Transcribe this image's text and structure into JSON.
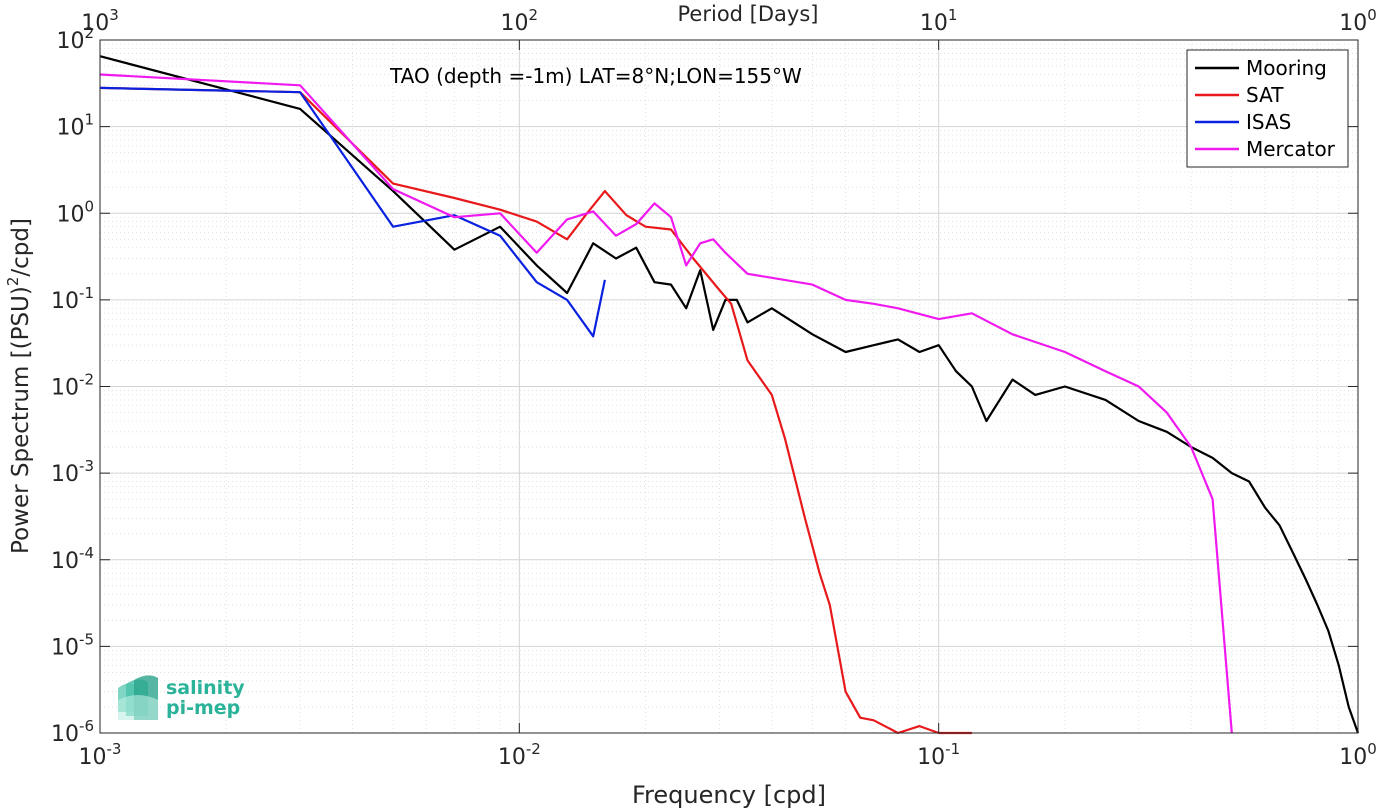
{
  "chart_data": {
    "type": "line",
    "title": "TAO (depth =-1m) LAT=8°N;LON=155°W",
    "xlabel": "Frequency [cpd]",
    "ylabel": "Power Spectrum [(PSU)²/cpd]",
    "ylabel_base": "Power Spectrum [(PSU)",
    "ylabel_exp": "2",
    "ylabel_end": "/cpd]",
    "top_xlabel": "Period [Days]",
    "x_scale": "log",
    "y_scale": "log",
    "xlim": [
      0.001,
      1
    ],
    "ylim": [
      1e-06,
      100
    ],
    "x_ticks": [
      {
        "value": 0.001,
        "base": "10",
        "exp": "-3"
      },
      {
        "value": 0.01,
        "base": "10",
        "exp": "-2"
      },
      {
        "value": 0.1,
        "base": "10",
        "exp": "-1"
      },
      {
        "value": 1,
        "base": "10",
        "exp": "0"
      }
    ],
    "y_ticks": [
      {
        "value": 1e-06,
        "base": "10",
        "exp": "-6"
      },
      {
        "value": 1e-05,
        "base": "10",
        "exp": "-5"
      },
      {
        "value": 0.0001,
        "base": "10",
        "exp": "-4"
      },
      {
        "value": 0.001,
        "base": "10",
        "exp": "-3"
      },
      {
        "value": 0.01,
        "base": "10",
        "exp": "-2"
      },
      {
        "value": 0.1,
        "base": "10",
        "exp": "-1"
      },
      {
        "value": 1,
        "base": "10",
        "exp": "0"
      },
      {
        "value": 10,
        "base": "10",
        "exp": "1"
      },
      {
        "value": 100,
        "base": "10",
        "exp": "2"
      }
    ],
    "top_ticks": [
      {
        "value": 0.001,
        "base": "10",
        "exp": "3"
      },
      {
        "value": 0.01,
        "base": "10",
        "exp": "2"
      },
      {
        "value": 0.1,
        "base": "10",
        "exp": "1"
      },
      {
        "value": 1,
        "base": "10",
        "exp": "0"
      }
    ],
    "grid": true,
    "legend_position": "top-right",
    "series": [
      {
        "name": "Mooring",
        "color": "#000000",
        "x": [
          0.001,
          0.003,
          0.005,
          0.007,
          0.009,
          0.011,
          0.013,
          0.015,
          0.017,
          0.019,
          0.021,
          0.023,
          0.025,
          0.027,
          0.029,
          0.031,
          0.033,
          0.035,
          0.04,
          0.05,
          0.06,
          0.07,
          0.08,
          0.09,
          0.1,
          0.11,
          0.12,
          0.13,
          0.15,
          0.17,
          0.2,
          0.25,
          0.3,
          0.35,
          0.4,
          0.45,
          0.5,
          0.55,
          0.6,
          0.65,
          0.7,
          0.75,
          0.8,
          0.85,
          0.9,
          0.95,
          1.0
        ],
        "y": [
          65,
          16,
          1.8,
          0.38,
          0.7,
          0.25,
          0.12,
          0.45,
          0.3,
          0.4,
          0.16,
          0.15,
          0.08,
          0.22,
          0.045,
          0.1,
          0.1,
          0.055,
          0.08,
          0.04,
          0.025,
          0.03,
          0.035,
          0.025,
          0.03,
          0.015,
          0.01,
          0.004,
          0.012,
          0.008,
          0.01,
          0.007,
          0.004,
          0.003,
          0.002,
          0.0015,
          0.001,
          0.0008,
          0.0004,
          0.00025,
          0.00012,
          6e-05,
          3e-05,
          1.5e-05,
          6e-06,
          2e-06,
          1e-06
        ]
      },
      {
        "name": "SAT",
        "color": "#e8191b",
        "x": [
          0.001,
          0.003,
          0.005,
          0.007,
          0.009,
          0.011,
          0.013,
          0.0145,
          0.016,
          0.018,
          0.02,
          0.023,
          0.026,
          0.03,
          0.032,
          0.035,
          0.04,
          0.043,
          0.048,
          0.052,
          0.055,
          0.06,
          0.065,
          0.07,
          0.08,
          0.09,
          0.1,
          0.12
        ],
        "y": [
          28,
          25,
          2.2,
          1.5,
          1.1,
          0.8,
          0.5,
          1.0,
          1.8,
          0.95,
          0.7,
          0.65,
          0.3,
          0.13,
          0.09,
          0.02,
          0.008,
          0.0025,
          0.0003,
          7e-05,
          3e-05,
          3e-06,
          1.5e-06,
          1.4e-06,
          1e-06,
          1.2e-06,
          1e-06,
          1e-06
        ]
      },
      {
        "name": "ISAS",
        "color": "#0a22e0",
        "x": [
          0.001,
          0.003,
          0.005,
          0.007,
          0.009,
          0.011,
          0.013,
          0.015,
          0.016
        ],
        "y": [
          28,
          25,
          0.7,
          0.95,
          0.55,
          0.16,
          0.1,
          0.038,
          0.17
        ]
      },
      {
        "name": "Mercator",
        "color": "#f019f0",
        "x": [
          0.001,
          0.003,
          0.005,
          0.007,
          0.009,
          0.011,
          0.013,
          0.015,
          0.017,
          0.019,
          0.021,
          0.023,
          0.025,
          0.027,
          0.029,
          0.031,
          0.035,
          0.04,
          0.05,
          0.06,
          0.07,
          0.08,
          0.1,
          0.12,
          0.15,
          0.2,
          0.25,
          0.3,
          0.35,
          0.4,
          0.45,
          0.5
        ],
        "y": [
          40,
          30,
          1.9,
          0.9,
          1.0,
          0.35,
          0.85,
          1.05,
          0.55,
          0.75,
          1.3,
          0.9,
          0.25,
          0.45,
          0.5,
          0.35,
          0.2,
          0.18,
          0.15,
          0.1,
          0.09,
          0.08,
          0.06,
          0.07,
          0.04,
          0.025,
          0.015,
          0.01,
          0.005,
          0.002,
          0.0005,
          1e-06
        ]
      }
    ]
  },
  "logo": {
    "line1": "salinity",
    "line2": "pi-mep",
    "color": "#2bb39a"
  }
}
